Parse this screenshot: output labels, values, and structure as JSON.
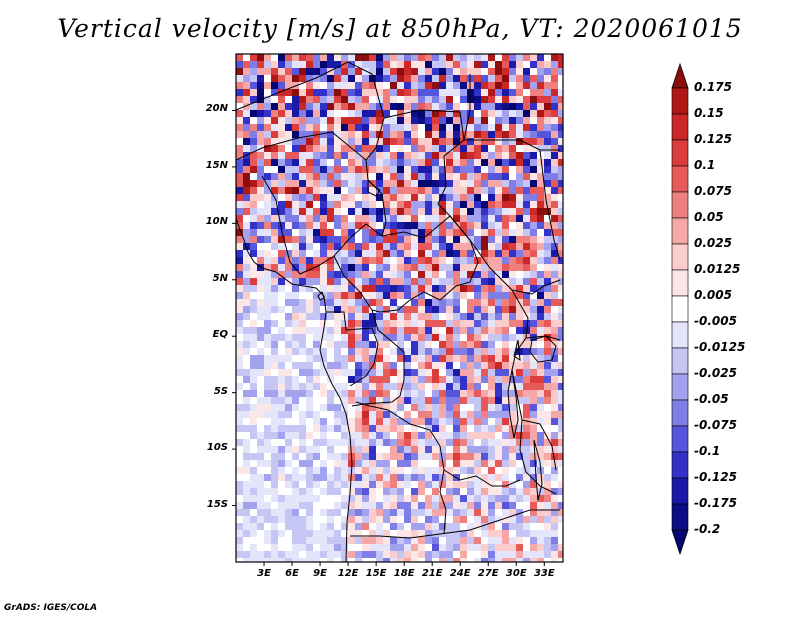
{
  "title": "Vertical velocity [m/s] at 850hPa, VT: 2020061015",
  "credit": "GrADS: IGES/COLA",
  "map": {
    "lon_range": [
      0,
      35
    ],
    "lat_range": [
      -20,
      25
    ],
    "lat_ticks": [
      {
        "value": 20,
        "label": "20N"
      },
      {
        "value": 15,
        "label": "15N"
      },
      {
        "value": 10,
        "label": "10N"
      },
      {
        "value": 5,
        "label": "5N"
      },
      {
        "value": 0,
        "label": "EQ"
      },
      {
        "value": -5,
        "label": "5S"
      },
      {
        "value": -10,
        "label": "10S"
      },
      {
        "value": -15,
        "label": "15S"
      }
    ],
    "lon_ticks": [
      {
        "value": 3,
        "label": "3E"
      },
      {
        "value": 6,
        "label": "6E"
      },
      {
        "value": 9,
        "label": "9E"
      },
      {
        "value": 12,
        "label": "12E"
      },
      {
        "value": 15,
        "label": "15E"
      },
      {
        "value": 18,
        "label": "18E"
      },
      {
        "value": 21,
        "label": "21E"
      },
      {
        "value": 24,
        "label": "24E"
      },
      {
        "value": 27,
        "label": "27E"
      },
      {
        "value": 30,
        "label": "30E"
      },
      {
        "value": 33,
        "label": "33E"
      }
    ]
  },
  "colorbar": {
    "labels": [
      "0.175",
      "0.15",
      "0.125",
      "0.1",
      "0.075",
      "0.05",
      "0.025",
      "0.0125",
      "0.005",
      "-0.005",
      "-0.0125",
      "-0.025",
      "-0.05",
      "-0.075",
      "-0.1",
      "-0.125",
      "-0.175",
      "-0.2"
    ],
    "colors": [
      "#8b0d0d",
      "#b01818",
      "#cc2828",
      "#dc3c3c",
      "#e65a5a",
      "#ef8080",
      "#f6a8a8",
      "#fbcccc",
      "#fde6e6",
      "#ffffff",
      "#e4e4fb",
      "#c6c6f5",
      "#a2a2ee",
      "#7e7ee6",
      "#5656dc",
      "#3232c8",
      "#1a1aa8",
      "#0c0c84",
      "#060670"
    ]
  }
}
